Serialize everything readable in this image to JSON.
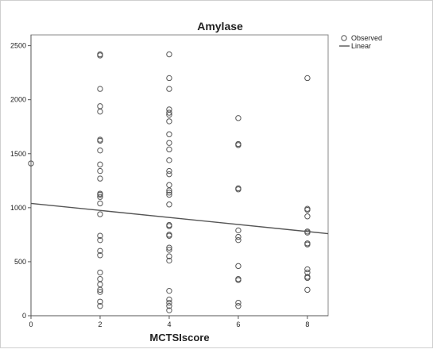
{
  "chart_data": {
    "type": "scatter",
    "title": "Amylase",
    "xlabel": "MCTSIscore",
    "ylabel": "",
    "xlim": [
      0,
      8.6
    ],
    "ylim": [
      0,
      2600
    ],
    "x_ticks": [
      0,
      2,
      4,
      6,
      8
    ],
    "y_ticks": [
      0,
      500,
      1000,
      1500,
      2000,
      2500
    ],
    "grid": false,
    "legend_position": "top-right",
    "series": [
      {
        "name": "Observed",
        "marker": "open-circle",
        "points": [
          [
            0,
            1410
          ],
          [
            2,
            2410
          ],
          [
            2,
            2420
          ],
          [
            2,
            2100
          ],
          [
            2,
            1940
          ],
          [
            2,
            1890
          ],
          [
            2,
            1630
          ],
          [
            2,
            1620
          ],
          [
            2,
            1530
          ],
          [
            2,
            1400
          ],
          [
            2,
            1340
          ],
          [
            2,
            1270
          ],
          [
            2,
            1130
          ],
          [
            2,
            1120
          ],
          [
            2,
            1100
          ],
          [
            2,
            1040
          ],
          [
            2,
            940
          ],
          [
            2,
            740
          ],
          [
            2,
            700
          ],
          [
            2,
            600
          ],
          [
            2,
            560
          ],
          [
            2,
            400
          ],
          [
            2,
            340
          ],
          [
            2,
            290
          ],
          [
            2,
            240
          ],
          [
            2,
            220
          ],
          [
            2,
            130
          ],
          [
            2,
            90
          ],
          [
            4,
            2420
          ],
          [
            4,
            2200
          ],
          [
            4,
            2100
          ],
          [
            4,
            1910
          ],
          [
            4,
            1880
          ],
          [
            4,
            1860
          ],
          [
            4,
            1800
          ],
          [
            4,
            1680
          ],
          [
            4,
            1600
          ],
          [
            4,
            1540
          ],
          [
            4,
            1440
          ],
          [
            4,
            1340
          ],
          [
            4,
            1310
          ],
          [
            4,
            1210
          ],
          [
            4,
            1160
          ],
          [
            4,
            1140
          ],
          [
            4,
            1120
          ],
          [
            4,
            1030
          ],
          [
            4,
            840
          ],
          [
            4,
            830
          ],
          [
            4,
            750
          ],
          [
            4,
            740
          ],
          [
            4,
            630
          ],
          [
            4,
            610
          ],
          [
            4,
            550
          ],
          [
            4,
            510
          ],
          [
            4,
            230
          ],
          [
            4,
            150
          ],
          [
            4,
            120
          ],
          [
            4,
            90
          ],
          [
            4,
            50
          ],
          [
            6,
            1830
          ],
          [
            6,
            1590
          ],
          [
            6,
            1580
          ],
          [
            6,
            1180
          ],
          [
            6,
            1170
          ],
          [
            6,
            790
          ],
          [
            6,
            730
          ],
          [
            6,
            700
          ],
          [
            6,
            460
          ],
          [
            6,
            340
          ],
          [
            6,
            330
          ],
          [
            6,
            120
          ],
          [
            6,
            90
          ],
          [
            8,
            2200
          ],
          [
            8,
            990
          ],
          [
            8,
            980
          ],
          [
            8,
            920
          ],
          [
            8,
            780
          ],
          [
            8,
            770
          ],
          [
            8,
            670
          ],
          [
            8,
            660
          ],
          [
            8,
            430
          ],
          [
            8,
            400
          ],
          [
            8,
            360
          ],
          [
            8,
            350
          ],
          [
            8,
            240
          ]
        ]
      },
      {
        "name": "Linear",
        "type": "line",
        "color": "#555555",
        "points": [
          [
            0,
            1040
          ],
          [
            8.6,
            760
          ]
        ]
      }
    ]
  }
}
